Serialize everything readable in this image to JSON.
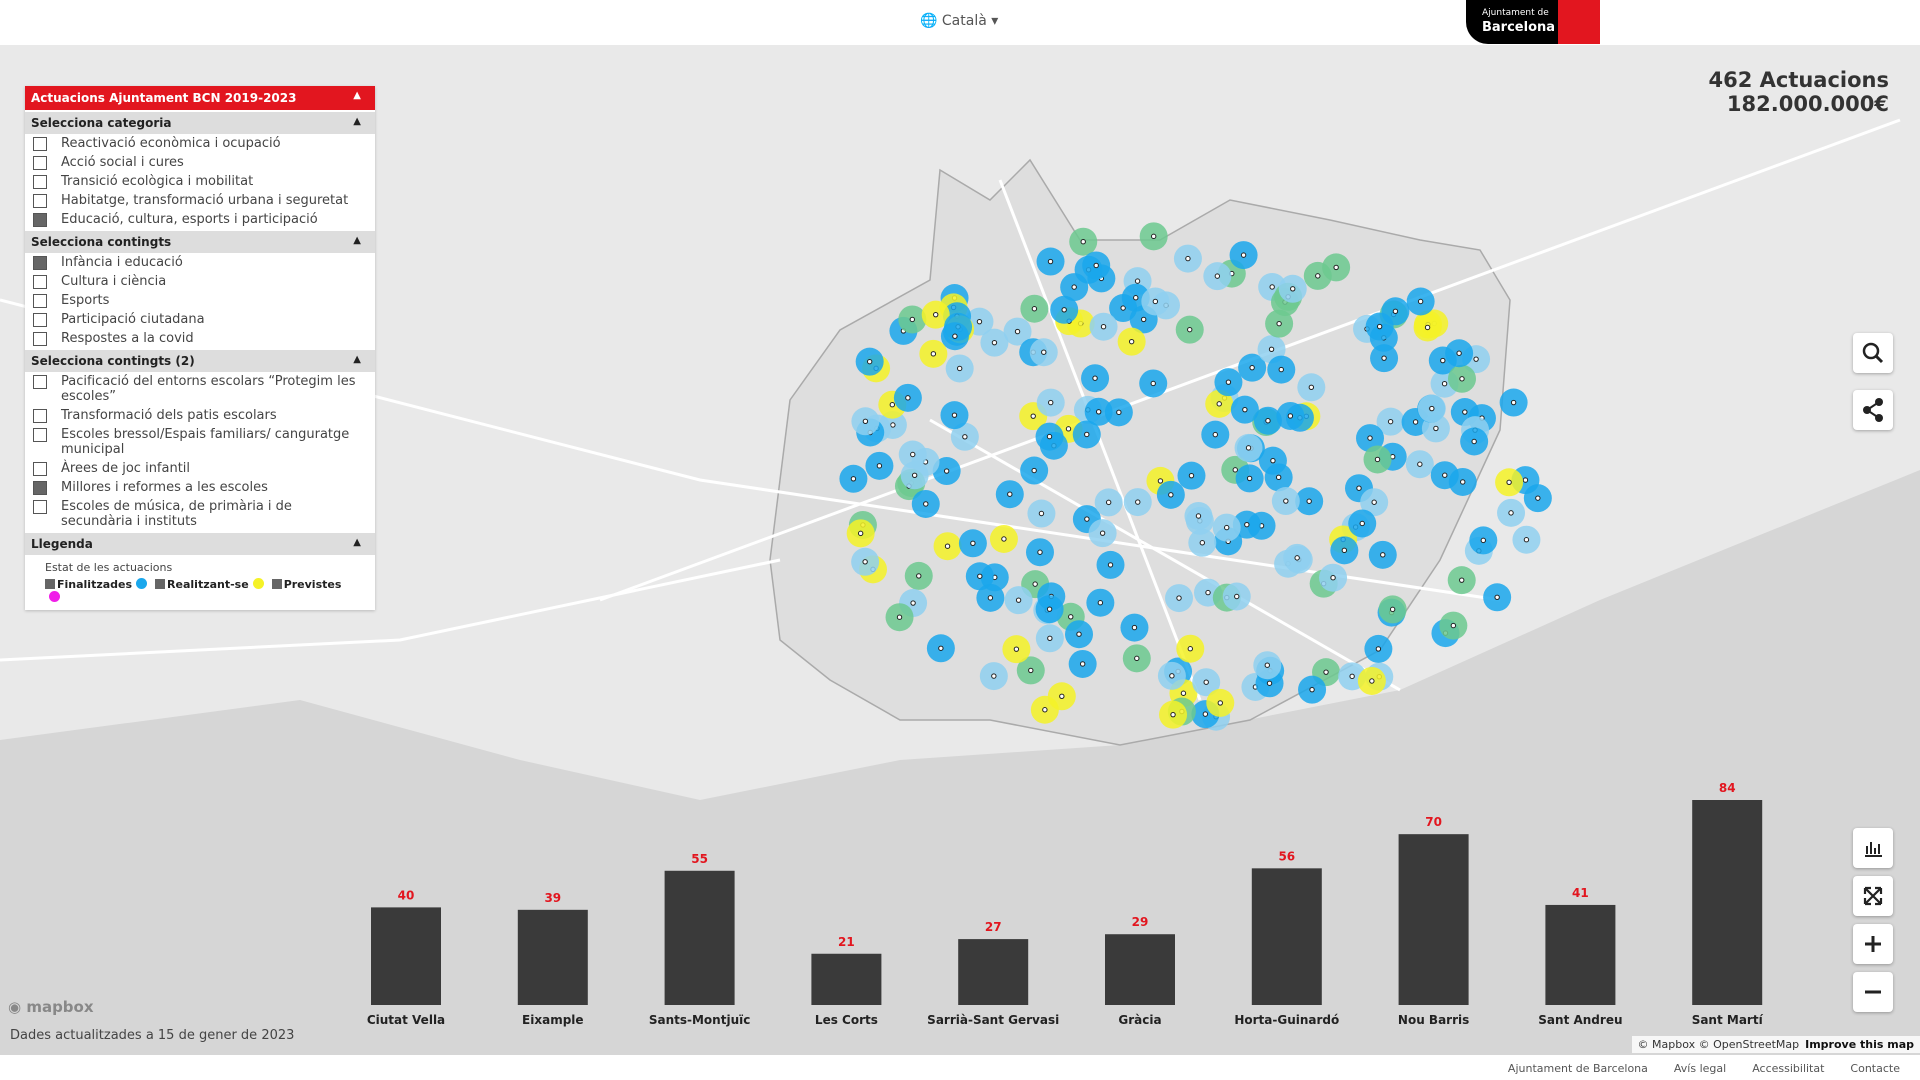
{
  "header": {
    "language": "Català",
    "logo_line1": "Ajuntament de",
    "logo_line2": "Barcelona"
  },
  "panel": {
    "title": "Actuacions Ajuntament BCN 2019-2023",
    "sections": [
      {
        "title": "Selecciona categoria",
        "items": [
          {
            "label": "Reactivació econòmica i ocupació",
            "checked": false
          },
          {
            "label": "Acció social i cures",
            "checked": false
          },
          {
            "label": "Transició ecològica i mobilitat",
            "checked": false
          },
          {
            "label": "Habitatge, transformació urbana i seguretat",
            "checked": false
          },
          {
            "label": "Educació, cultura, esports i participació",
            "checked": true
          }
        ]
      },
      {
        "title": "Selecciona contingts",
        "items": [
          {
            "label": "Infància i educació",
            "checked": true
          },
          {
            "label": "Cultura i ciència",
            "checked": false
          },
          {
            "label": "Esports",
            "checked": false
          },
          {
            "label": "Participació ciutadana",
            "checked": false
          },
          {
            "label": "Respostes a la covid",
            "checked": false
          }
        ]
      },
      {
        "title": "Selecciona contingts (2)",
        "items": [
          {
            "label": "Pacificació del entorns escolars “Protegim les escoles”",
            "checked": false
          },
          {
            "label": "Transformació dels patis escolars",
            "checked": false
          },
          {
            "label": "Escoles bressol/Espais familiars/ canguratge municipal",
            "checked": false
          },
          {
            "label": "Àrees de joc infantil",
            "checked": false
          },
          {
            "label": "Millores i reformes a les escoles",
            "checked": true
          },
          {
            "label": "Escoles de música, de primària i de secundària i instituts",
            "checked": false
          }
        ]
      }
    ],
    "legend": {
      "title": "Llegenda",
      "subtitle": "Estat de les actuacions",
      "items": [
        {
          "label": "Finalitzades",
          "color": "#1aa7ec"
        },
        {
          "label": "Realitzant-se",
          "color": "#f5f227"
        },
        {
          "label": "Previstes",
          "color": "#f01ee8"
        }
      ]
    }
  },
  "stats": {
    "count": "462 Actuacions",
    "amount": "182.000.000€"
  },
  "chart": {
    "type": "bar",
    "color": "#3a3a3a",
    "label_color": "#e2161f",
    "categories": [
      "Ciutat Vella",
      "Eixample",
      "Sants-Montjuïc",
      "Les Corts",
      "Sarrià-Sant Gervasi",
      "Gràcia",
      "Horta-Guinardó",
      "Nou Barris",
      "Sant Andreu",
      "Sant Martí"
    ],
    "values": [
      40,
      39,
      55,
      21,
      27,
      29,
      56,
      70,
      41,
      84
    ]
  },
  "updated": "Dades actualitzades a 15 de gener de 2023",
  "mapbox_logo": "mapbox",
  "attribution": "© Mapbox © OpenStreetMap",
  "improve": "Improve this map",
  "footer_links": [
    "Ajuntament de Barcelona",
    "Avís legal",
    "Accessibilitat",
    "Contacte"
  ]
}
